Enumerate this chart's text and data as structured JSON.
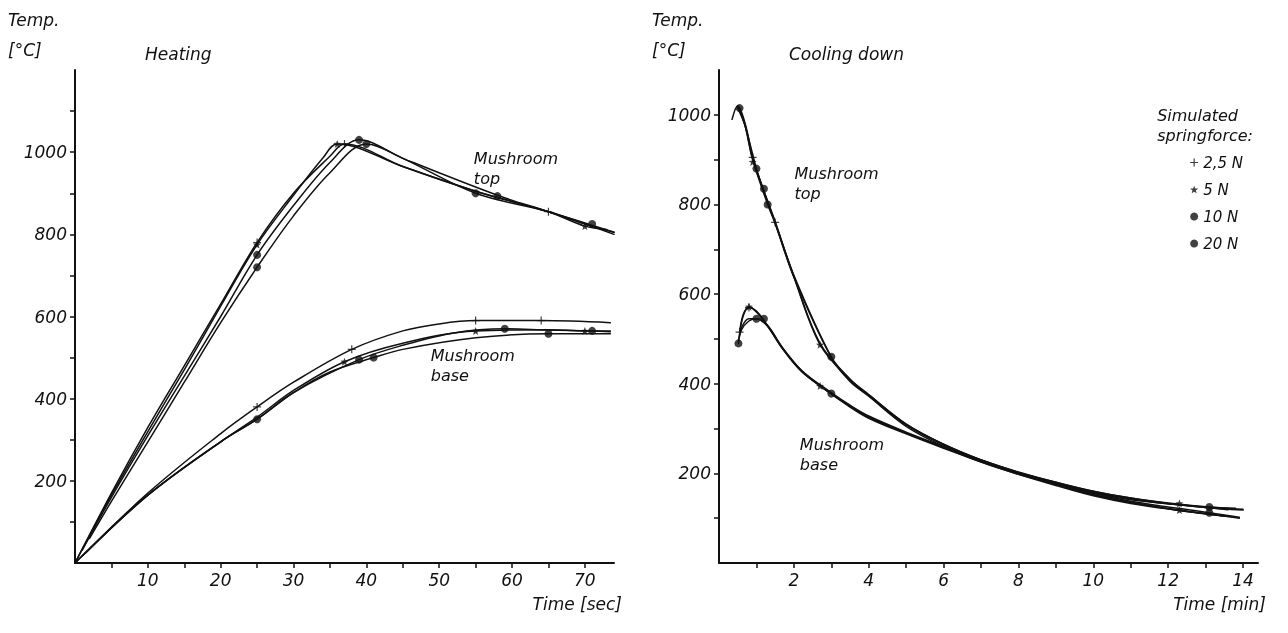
{
  "chart_data": [
    {
      "type": "line",
      "title": "Heating",
      "xlabel": "Time [sec]",
      "ylabel": "Temp. [°C]",
      "line_style": "solid",
      "grid": false,
      "legend": false,
      "annotations": [
        "Mushroom top",
        "Mushroom base"
      ],
      "xlim": [
        0,
        74
      ],
      "xticks": [
        {
          "value": 5,
          "label": null
        },
        10,
        {
          "value": 15,
          "label": null
        },
        20,
        {
          "value": 25,
          "label": null
        },
        30,
        {
          "value": 35,
          "label": null
        },
        40,
        {
          "value": 45,
          "label": null
        },
        50,
        {
          "value": 55,
          "label": null
        },
        60,
        {
          "value": 65,
          "label": null
        },
        70
      ],
      "ylim": [
        0,
        1200
      ],
      "yticks": [
        {
          "value": 100,
          "label": null
        },
        200,
        {
          "value": 300,
          "label": null
        },
        400,
        {
          "value": 500,
          "label": null
        },
        600,
        {
          "value": 700,
          "label": null
        },
        800,
        {
          "value": 900,
          "label": null
        },
        1000,
        {
          "value": 1100,
          "label": null
        }
      ],
      "series": [
        {
          "color": "#111111",
          "x": [
            0,
            5,
            10,
            15,
            20,
            25,
            30,
            35,
            37,
            45,
            55,
            65,
            74
          ],
          "values": [
            0,
            170,
            330,
            480,
            630,
            780,
            900,
            990,
            1020,
            965,
            905,
            855,
            805
          ]
        },
        {
          "color": "#111111",
          "x": [
            0,
            5,
            10,
            15,
            20,
            25,
            30,
            34,
            36,
            45,
            55,
            65,
            70,
            73
          ],
          "values": [
            0,
            165,
            320,
            470,
            625,
            775,
            895,
            985,
            1020,
            965,
            905,
            855,
            820,
            812
          ]
        },
        {
          "color": "#111111",
          "x": [
            1,
            5,
            10,
            15,
            20,
            25,
            30,
            35,
            39,
            45,
            58,
            65,
            70,
            74
          ],
          "values": [
            31,
            160,
            310,
            455,
            600,
            750,
            870,
            975,
            1030,
            985,
            895,
            855,
            825,
            805
          ]
        },
        {
          "color": "#111111",
          "x": [
            2,
            5,
            10,
            15,
            20,
            25,
            30,
            35,
            40,
            45,
            55,
            65,
            74
          ],
          "values": [
            60,
            150,
            295,
            440,
            585,
            720,
            845,
            950,
            1020,
            985,
            900,
            855,
            800
          ]
        },
        {
          "color": "#111111",
          "x": [
            0,
            10,
            20,
            25,
            30,
            38,
            45,
            50,
            55,
            64,
            73.5
          ],
          "values": [
            0,
            170,
            315,
            380,
            440,
            520,
            565,
            582,
            590,
            590,
            585
          ]
        },
        {
          "color": "#111111",
          "x": [
            0,
            10,
            20,
            25,
            30,
            37,
            45,
            55,
            65,
            70,
            73.5
          ],
          "values": [
            0,
            165,
            295,
            355,
            420,
            490,
            535,
            565,
            568,
            565,
            565
          ]
        },
        {
          "color": "#111111",
          "x": [
            1,
            10,
            20,
            25,
            30,
            39,
            45,
            52,
            59,
            65,
            71,
            73.5
          ],
          "values": [
            17,
            165,
            295,
            350,
            415,
            495,
            530,
            560,
            570,
            567,
            565,
            563
          ]
        },
        {
          "color": "#111111",
          "x": [
            1.5,
            10,
            20,
            25,
            30,
            35,
            41,
            45,
            55,
            65,
            73.5
          ],
          "values": [
            25,
            165,
            295,
            350,
            415,
            465,
            500,
            520,
            548,
            558,
            558
          ]
        },
        {
          "type": "scatter",
          "color": "#111111",
          "marker": "cross",
          "x": [
            25,
            37,
            65,
            25,
            38,
            55,
            64
          ],
          "values": [
            780,
            1020,
            855,
            380,
            520,
            590,
            590
          ]
        },
        {
          "type": "scatter",
          "color": "#111111",
          "marker": "star",
          "x": [
            25,
            36,
            70,
            37,
            55,
            70
          ],
          "values": [
            775,
            1020,
            820,
            490,
            565,
            565
          ]
        },
        {
          "type": "scatter",
          "color": "#111111",
          "marker": "circle",
          "x": [
            25,
            39,
            58,
            71,
            39,
            59,
            71
          ],
          "values": [
            750,
            1030,
            893,
            825,
            495,
            570,
            565
          ]
        },
        {
          "type": "scatter",
          "color": "#111111",
          "marker": "circle",
          "x": [
            25,
            40,
            55,
            25,
            41,
            65
          ],
          "values": [
            720,
            1020,
            900,
            350,
            500,
            558
          ]
        }
      ]
    },
    {
      "type": "line",
      "title": "Cooling down",
      "xlabel": "Time [min]",
      "ylabel": "Temp. [°C]",
      "legend_title": "Simulated springforce:",
      "line_style": "solid",
      "grid": false,
      "legend": "top right",
      "annotations": [
        "Mushroom top",
        "Mushroom base"
      ],
      "xlim": [
        0,
        14.4
      ],
      "xticks": [
        {
          "value": 1,
          "label": null
        },
        2,
        {
          "value": 3,
          "label": null
        },
        4,
        {
          "value": 5,
          "label": null
        },
        6,
        {
          "value": 7,
          "label": null
        },
        8,
        {
          "value": 9,
          "label": null
        },
        10,
        {
          "value": 11,
          "label": null
        },
        12,
        {
          "value": 13,
          "label": null
        },
        14
      ],
      "ylim": [
        0,
        1100
      ],
      "yticks": [
        {
          "value": 100,
          "label": null
        },
        200,
        {
          "value": 300,
          "label": null
        },
        400,
        {
          "value": 500,
          "label": null
        },
        600,
        {
          "value": 700,
          "label": null
        },
        800,
        {
          "value": 900,
          "label": null
        },
        1000
      ],
      "series": [
        {
          "color": "#111111",
          "x": [
            0.35,
            0.5,
            0.7,
            0.9,
            1.2,
            1.5,
            2,
            2.7,
            3.5,
            4,
            5,
            6,
            7,
            8,
            9,
            10,
            11,
            12,
            13,
            14
          ],
          "values": [
            990,
            1020,
            980,
            905,
            830,
            760,
            640,
            490,
            410,
            375,
            310,
            265,
            230,
            203,
            180,
            160,
            145,
            133,
            125,
            120
          ]
        },
        {
          "color": "#111111",
          "x": [
            0.5,
            0.7,
            0.9,
            1.2,
            1.5,
            2,
            2.7,
            3.5,
            4,
            5,
            6,
            7,
            8,
            9,
            10,
            11,
            12,
            13,
            14
          ],
          "values": [
            1015,
            975,
            900,
            828,
            758,
            638,
            487,
            408,
            373,
            308,
            263,
            228,
            200,
            178,
            158,
            143,
            132,
            124,
            118
          ]
        },
        {
          "color": "#111111",
          "x": [
            0.5,
            0.7,
            1.0,
            1.2,
            1.5,
            2,
            3,
            3.5,
            4,
            5,
            6,
            7,
            8,
            9,
            10,
            11,
            12,
            13.1,
            13.8
          ],
          "values": [
            1020,
            975,
            880,
            830,
            762,
            642,
            460,
            410,
            376,
            310,
            265,
            230,
            202,
            180,
            160,
            145,
            134,
            125,
            122
          ]
        },
        {
          "color": "#111111",
          "x": [
            0.55,
            0.7,
            0.9,
            1.3,
            1.5,
            2,
            3,
            3.5,
            4,
            5,
            6,
            7,
            8,
            9,
            10,
            11,
            12.3,
            13.6
          ],
          "values": [
            1015,
            975,
            900,
            800,
            758,
            638,
            458,
            405,
            372,
            305,
            260,
            225,
            198,
            176,
            156,
            141,
            130,
            119
          ]
        },
        {
          "color": "#111111",
          "x": [
            0.55,
            0.65,
            0.8,
            1.0,
            1.3,
            1.7,
            2.2,
            2.7,
            3.5,
            4,
            5,
            6,
            7,
            8,
            9,
            10,
            11,
            12.3,
            13.9
          ],
          "values": [
            515,
            555,
            570,
            562,
            530,
            480,
            430,
            395,
            350,
            325,
            290,
            258,
            228,
            200,
            175,
            152,
            135,
            118,
            100
          ]
        },
        {
          "color": "#111111",
          "x": [
            0.55,
            0.65,
            0.8,
            1.0,
            1.3,
            1.7,
            2.2,
            2.7,
            3.5,
            4,
            5,
            6,
            7,
            8,
            9,
            10,
            11,
            12.3,
            13.7
          ],
          "values": [
            510,
            552,
            572,
            560,
            528,
            478,
            428,
            395,
            348,
            323,
            288,
            256,
            226,
            198,
            173,
            150,
            133,
            117,
            103
          ]
        },
        {
          "color": "#111111",
          "x": [
            0.52,
            0.6,
            0.8,
            1.0,
            1.3,
            1.7,
            2.2,
            3.0,
            3.5,
            4,
            5,
            6,
            7,
            8,
            9,
            10,
            11,
            13.1,
            13.9
          ],
          "values": [
            495,
            525,
            545,
            545,
            530,
            480,
            430,
            380,
            352,
            328,
            292,
            260,
            230,
            202,
            178,
            155,
            138,
            112,
            102
          ]
        },
        {
          "color": "#111111",
          "x": [
            0.52,
            0.6,
            0.8,
            1.0,
            1.3,
            1.7,
            2.2,
            3.0,
            3.5,
            4,
            5,
            6,
            7,
            8,
            9,
            10,
            11,
            12.3,
            13.6
          ],
          "values": [
            490,
            520,
            540,
            545,
            528,
            478,
            428,
            378,
            350,
            326,
            290,
            258,
            228,
            200,
            176,
            153,
            136,
            117,
            104
          ]
        },
        {
          "name": "2,5 N",
          "type": "scatter",
          "color": "#111111",
          "marker": "cross",
          "x": [
            0.9,
            1.5,
            0.55,
            0.8
          ],
          "values": [
            905,
            760,
            515,
            570
          ]
        },
        {
          "name": "5 N",
          "type": "scatter",
          "color": "#111111",
          "marker": "star",
          "x": [
            0.9,
            2.7,
            12.3,
            0.8,
            2.7,
            12.3
          ],
          "values": [
            895,
            487,
            133,
            572,
            395,
            118
          ]
        },
        {
          "name": "10 N",
          "type": "scatter",
          "color": "#111111",
          "marker": "circle",
          "x": [
            1.0,
            3.0,
            13.1,
            1.0,
            13.1
          ],
          "values": [
            880,
            460,
            125,
            545,
            112
          ]
        },
        {
          "name": "20 N",
          "type": "scatter",
          "color": "#111111",
          "marker": "circle",
          "x": [
            0.55,
            1.2,
            1.3,
            0.52,
            1.2,
            3.0
          ],
          "values": [
            1015,
            835,
            800,
            490,
            545,
            378
          ]
        }
      ]
    }
  ]
}
